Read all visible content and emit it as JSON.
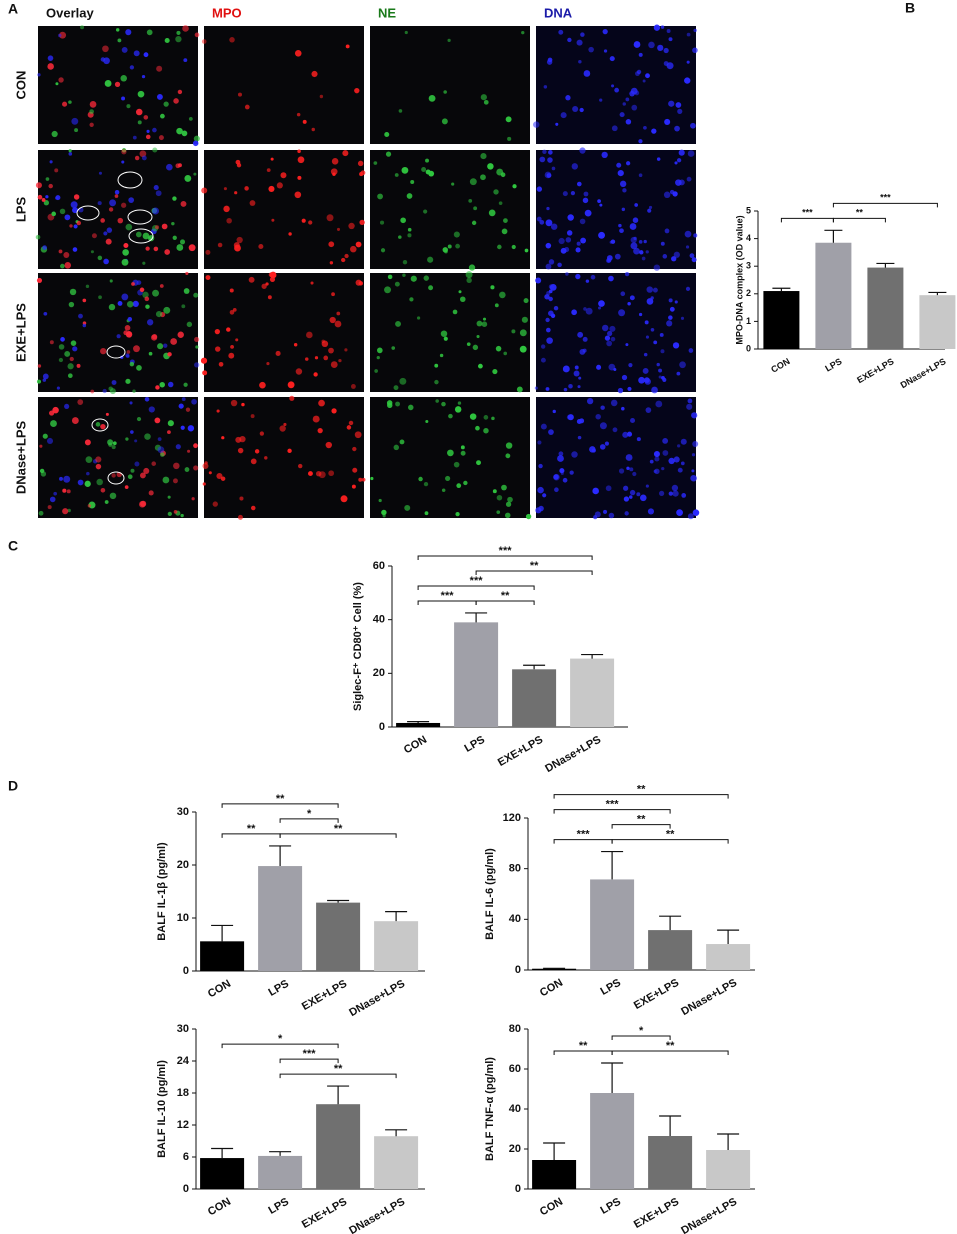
{
  "micrograph_panel": {
    "panel_label": "A",
    "columns": [
      "Overlay",
      "MPO",
      "NE",
      "DNA"
    ],
    "column_colors": [
      "#111111",
      "#e01010",
      "#1a7a1a",
      "#1a1aa8"
    ],
    "rows": [
      "CON",
      "LPS",
      "EXE+LPS",
      "DNase+LPS"
    ]
  },
  "panel_d_label": "D",
  "chart_data": [
    {
      "type": "bar",
      "panel_label": "B",
      "y_label": "MPO-DNA complex (OD value)",
      "categories": [
        "CON",
        "LPS",
        "EXE+LPS",
        "DNase+LPS"
      ],
      "values": [
        2.1,
        3.85,
        2.95,
        1.95
      ],
      "errors": [
        0.1,
        0.45,
        0.15,
        0.1
      ],
      "colors": [
        "#000000",
        "#a0a0a8",
        "#707070",
        "#c8c8c8"
      ],
      "ylim": [
        0,
        5
      ],
      "yticks": [
        0,
        1,
        2,
        3,
        4,
        5
      ],
      "comparisons": [
        {
          "from": 1,
          "to": 2,
          "label": "**"
        },
        {
          "from": 1,
          "to": 3,
          "label": "***"
        },
        {
          "from": 0,
          "to": 1,
          "label": "***"
        }
      ]
    },
    {
      "type": "bar",
      "panel_label": "C",
      "y_label": "Siglec-F⁺ CD80⁺ Cell (%)",
      "categories": [
        "CON",
        "LPS",
        "EXE+LPS",
        "DNase+LPS"
      ],
      "values": [
        1.5,
        39,
        21.5,
        25.5
      ],
      "errors": [
        0.5,
        3.5,
        1.5,
        1.5
      ],
      "colors": [
        "#000000",
        "#a0a0a8",
        "#707070",
        "#c8c8c8"
      ],
      "ylim": [
        0,
        60
      ],
      "yticks": [
        0,
        20,
        40,
        60
      ],
      "comparisons": [
        {
          "from": 0,
          "to": 1,
          "label": "***"
        },
        {
          "from": 1,
          "to": 2,
          "label": "**"
        },
        {
          "from": 0,
          "to": 2,
          "label": "***"
        },
        {
          "from": 1,
          "to": 3,
          "label": "**"
        },
        {
          "from": 0,
          "to": 3,
          "label": "***"
        }
      ]
    },
    {
      "type": "bar",
      "y_label": "BALF IL-1β (pg/ml)",
      "categories": [
        "CON",
        "LPS",
        "EXE+LPS",
        "DNase+LPS"
      ],
      "values": [
        5.6,
        19.8,
        12.9,
        9.4
      ],
      "errors": [
        3,
        3.8,
        0.4,
        1.8
      ],
      "colors": [
        "#000000",
        "#a0a0a8",
        "#707070",
        "#c8c8c8"
      ],
      "ylim": [
        0,
        30
      ],
      "yticks": [
        0,
        10,
        20,
        30
      ],
      "comparisons": [
        {
          "from": 1,
          "to": 3,
          "label": "**"
        },
        {
          "from": 0,
          "to": 1,
          "label": "**"
        },
        {
          "from": 1,
          "to": 2,
          "label": "*"
        },
        {
          "from": 0,
          "to": 2,
          "label": "**"
        }
      ]
    },
    {
      "type": "bar",
      "y_label": "BALF IL-6 (pg/ml)",
      "categories": [
        "CON",
        "LPS",
        "EXE+LPS",
        "DNase+LPS"
      ],
      "values": [
        1,
        71.5,
        31.5,
        20.5
      ],
      "errors": [
        0.3,
        22,
        11,
        11
      ],
      "colors": [
        "#000000",
        "#a0a0a8",
        "#707070",
        "#c8c8c8"
      ],
      "ylim": [
        0,
        120
      ],
      "yticks": [
        0,
        40,
        80,
        120
      ],
      "comparisons": [
        {
          "from": 1,
          "to": 3,
          "label": "**"
        },
        {
          "from": 0,
          "to": 1,
          "label": "***"
        },
        {
          "from": 1,
          "to": 2,
          "label": "**"
        },
        {
          "from": 0,
          "to": 2,
          "label": "***"
        },
        {
          "from": 0,
          "to": 3,
          "label": "**"
        }
      ]
    },
    {
      "type": "bar",
      "y_label": "BALF IL-10 (pg/ml)",
      "categories": [
        "CON",
        "LPS",
        "EXE+LPS",
        "DNase+LPS"
      ],
      "values": [
        5.8,
        6.2,
        15.9,
        9.9
      ],
      "errors": [
        1.8,
        0.8,
        3.4,
        1.2
      ],
      "colors": [
        "#000000",
        "#a0a0a8",
        "#707070",
        "#c8c8c8"
      ],
      "ylim": [
        0,
        30
      ],
      "yticks": [
        0,
        6,
        12,
        18,
        24,
        30
      ],
      "comparisons": [
        {
          "from": 1,
          "to": 3,
          "label": "**"
        },
        {
          "from": 1,
          "to": 2,
          "label": "***"
        },
        {
          "from": 0,
          "to": 2,
          "label": "*"
        }
      ]
    },
    {
      "type": "bar",
      "y_label": "BALF TNF-α (pg/ml)",
      "categories": [
        "CON",
        "LPS",
        "EXE+LPS",
        "DNase+LPS"
      ],
      "values": [
        14.5,
        48,
        26.5,
        19.5
      ],
      "errors": [
        8.5,
        15,
        10,
        8
      ],
      "colors": [
        "#000000",
        "#a0a0a8",
        "#707070",
        "#c8c8c8"
      ],
      "ylim": [
        0,
        80
      ],
      "yticks": [
        0,
        20,
        40,
        60,
        80
      ],
      "comparisons": [
        {
          "from": 1,
          "to": 3,
          "label": "**"
        },
        {
          "from": 1,
          "to": 2,
          "label": "*"
        },
        {
          "from": 0,
          "to": 1,
          "label": "**"
        }
      ]
    }
  ]
}
